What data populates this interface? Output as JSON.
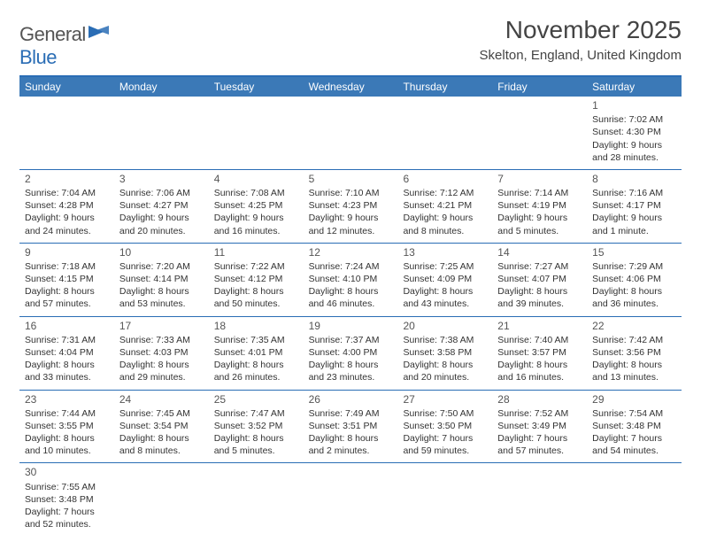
{
  "logo": {
    "text_general": "General",
    "text_blue": "Blue",
    "icon_color": "#2a6db5"
  },
  "title": "November 2025",
  "location": "Skelton, England, United Kingdom",
  "colors": {
    "header_bar": "#3b79b7",
    "rule": "#2a6db5",
    "text": "#333333",
    "title_text": "#444444"
  },
  "weekdays": [
    "Sunday",
    "Monday",
    "Tuesday",
    "Wednesday",
    "Thursday",
    "Friday",
    "Saturday"
  ],
  "weeks": [
    [
      null,
      null,
      null,
      null,
      null,
      null,
      {
        "n": "1",
        "sr": "7:02 AM",
        "ss": "4:30 PM",
        "dl": "9 hours and 28 minutes."
      }
    ],
    [
      {
        "n": "2",
        "sr": "7:04 AM",
        "ss": "4:28 PM",
        "dl": "9 hours and 24 minutes."
      },
      {
        "n": "3",
        "sr": "7:06 AM",
        "ss": "4:27 PM",
        "dl": "9 hours and 20 minutes."
      },
      {
        "n": "4",
        "sr": "7:08 AM",
        "ss": "4:25 PM",
        "dl": "9 hours and 16 minutes."
      },
      {
        "n": "5",
        "sr": "7:10 AM",
        "ss": "4:23 PM",
        "dl": "9 hours and 12 minutes."
      },
      {
        "n": "6",
        "sr": "7:12 AM",
        "ss": "4:21 PM",
        "dl": "9 hours and 8 minutes."
      },
      {
        "n": "7",
        "sr": "7:14 AM",
        "ss": "4:19 PM",
        "dl": "9 hours and 5 minutes."
      },
      {
        "n": "8",
        "sr": "7:16 AM",
        "ss": "4:17 PM",
        "dl": "9 hours and 1 minute."
      }
    ],
    [
      {
        "n": "9",
        "sr": "7:18 AM",
        "ss": "4:15 PM",
        "dl": "8 hours and 57 minutes."
      },
      {
        "n": "10",
        "sr": "7:20 AM",
        "ss": "4:14 PM",
        "dl": "8 hours and 53 minutes."
      },
      {
        "n": "11",
        "sr": "7:22 AM",
        "ss": "4:12 PM",
        "dl": "8 hours and 50 minutes."
      },
      {
        "n": "12",
        "sr": "7:24 AM",
        "ss": "4:10 PM",
        "dl": "8 hours and 46 minutes."
      },
      {
        "n": "13",
        "sr": "7:25 AM",
        "ss": "4:09 PM",
        "dl": "8 hours and 43 minutes."
      },
      {
        "n": "14",
        "sr": "7:27 AM",
        "ss": "4:07 PM",
        "dl": "8 hours and 39 minutes."
      },
      {
        "n": "15",
        "sr": "7:29 AM",
        "ss": "4:06 PM",
        "dl": "8 hours and 36 minutes."
      }
    ],
    [
      {
        "n": "16",
        "sr": "7:31 AM",
        "ss": "4:04 PM",
        "dl": "8 hours and 33 minutes."
      },
      {
        "n": "17",
        "sr": "7:33 AM",
        "ss": "4:03 PM",
        "dl": "8 hours and 29 minutes."
      },
      {
        "n": "18",
        "sr": "7:35 AM",
        "ss": "4:01 PM",
        "dl": "8 hours and 26 minutes."
      },
      {
        "n": "19",
        "sr": "7:37 AM",
        "ss": "4:00 PM",
        "dl": "8 hours and 23 minutes."
      },
      {
        "n": "20",
        "sr": "7:38 AM",
        "ss": "3:58 PM",
        "dl": "8 hours and 20 minutes."
      },
      {
        "n": "21",
        "sr": "7:40 AM",
        "ss": "3:57 PM",
        "dl": "8 hours and 16 minutes."
      },
      {
        "n": "22",
        "sr": "7:42 AM",
        "ss": "3:56 PM",
        "dl": "8 hours and 13 minutes."
      }
    ],
    [
      {
        "n": "23",
        "sr": "7:44 AM",
        "ss": "3:55 PM",
        "dl": "8 hours and 10 minutes."
      },
      {
        "n": "24",
        "sr": "7:45 AM",
        "ss": "3:54 PM",
        "dl": "8 hours and 8 minutes."
      },
      {
        "n": "25",
        "sr": "7:47 AM",
        "ss": "3:52 PM",
        "dl": "8 hours and 5 minutes."
      },
      {
        "n": "26",
        "sr": "7:49 AM",
        "ss": "3:51 PM",
        "dl": "8 hours and 2 minutes."
      },
      {
        "n": "27",
        "sr": "7:50 AM",
        "ss": "3:50 PM",
        "dl": "7 hours and 59 minutes."
      },
      {
        "n": "28",
        "sr": "7:52 AM",
        "ss": "3:49 PM",
        "dl": "7 hours and 57 minutes."
      },
      {
        "n": "29",
        "sr": "7:54 AM",
        "ss": "3:48 PM",
        "dl": "7 hours and 54 minutes."
      }
    ],
    [
      {
        "n": "30",
        "sr": "7:55 AM",
        "ss": "3:48 PM",
        "dl": "7 hours and 52 minutes."
      },
      null,
      null,
      null,
      null,
      null,
      null
    ]
  ],
  "labels": {
    "sunrise": "Sunrise: ",
    "sunset": "Sunset: ",
    "daylight": "Daylight: "
  }
}
